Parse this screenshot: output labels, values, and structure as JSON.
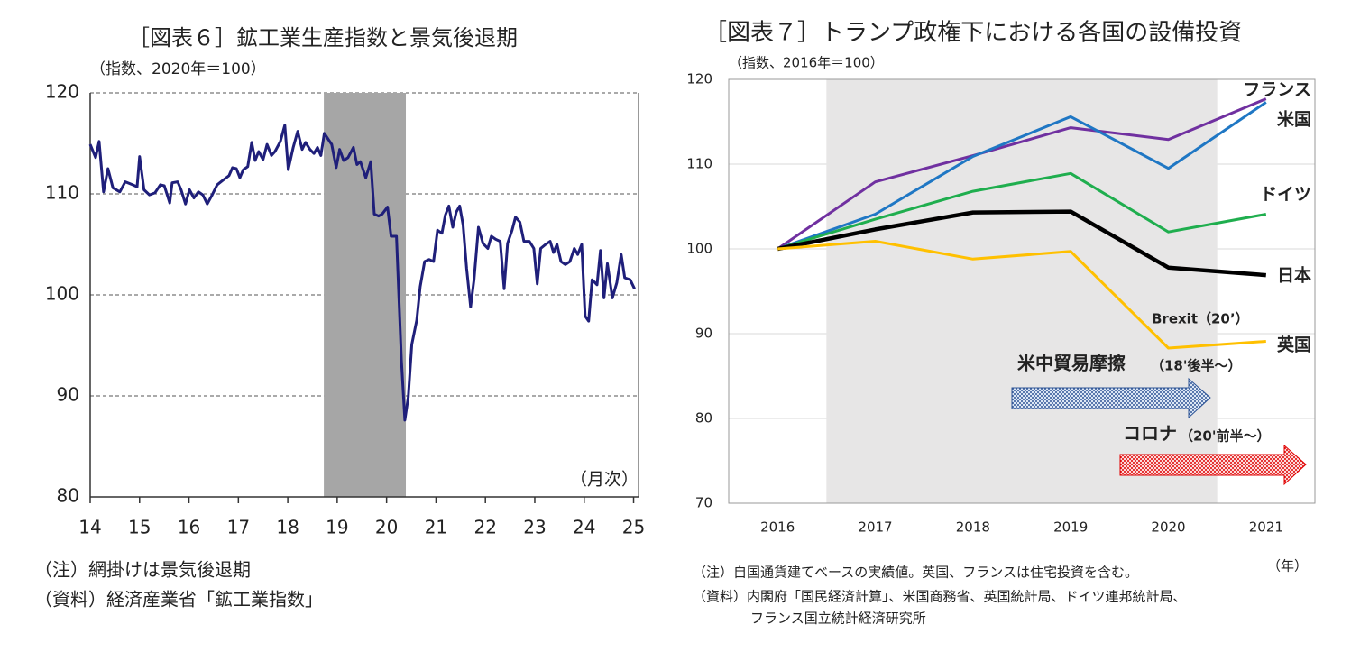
{
  "chart_data": [
    {
      "type": "line",
      "title": "［図表６］鉱工業生産指数と景気後退期",
      "subtitle": "（指数、2020年＝100）",
      "x_label": "（月次）",
      "notes": [
        "（注）網掛けは景気後退期",
        "（資料）経済産業省「鉱工業指数」"
      ],
      "xlim": [
        14,
        25.1
      ],
      "xticks": [
        14,
        15,
        16,
        17,
        18,
        19,
        20,
        21,
        22,
        23,
        24,
        25
      ],
      "ylim": [
        80,
        120
      ],
      "yticks": [
        80,
        90,
        100,
        110,
        120
      ],
      "grid": true,
      "grid_style": "dashed",
      "shade": [
        18.73,
        20.39
      ],
      "shade_color": "#a6a6a6",
      "x": [
        14.0,
        14.11,
        14.18,
        14.27,
        14.36,
        14.46,
        14.6,
        14.71,
        14.86,
        14.95,
        15.0,
        15.09,
        15.2,
        15.31,
        15.42,
        15.5,
        15.61,
        15.66,
        15.77,
        15.84,
        15.93,
        16.01,
        16.1,
        16.19,
        16.28,
        16.37,
        16.46,
        16.57,
        16.7,
        16.81,
        16.88,
        16.96,
        17.03,
        17.1,
        17.19,
        17.27,
        17.34,
        17.41,
        17.5,
        17.58,
        17.67,
        17.74,
        17.85,
        17.94,
        18.01,
        18.11,
        18.2,
        18.29,
        18.36,
        18.45,
        18.53,
        18.6,
        18.67,
        18.74,
        18.82,
        18.89,
        18.98,
        19.05,
        19.13,
        19.22,
        19.33,
        19.4,
        19.47,
        19.58,
        19.68,
        19.75,
        19.84,
        19.91,
        20.02,
        20.09,
        20.2,
        20.3,
        20.37,
        20.44,
        20.51,
        20.61,
        20.68,
        20.77,
        20.86,
        20.95,
        21.03,
        21.12,
        21.19,
        21.26,
        21.34,
        21.41,
        21.48,
        21.55,
        21.62,
        21.7,
        21.77,
        21.86,
        21.95,
        22.05,
        22.12,
        22.21,
        22.3,
        22.38,
        22.45,
        22.54,
        22.61,
        22.7,
        22.78,
        22.89,
        22.98,
        23.05,
        23.12,
        23.22,
        23.31,
        23.38,
        23.45,
        23.53,
        23.62,
        23.71,
        23.8,
        23.87,
        23.95,
        24.02,
        24.09,
        24.16,
        24.26,
        24.33,
        24.4,
        24.47,
        24.57,
        24.66,
        24.75,
        24.82,
        24.93,
        25.02
      ],
      "series": [
        {
          "name": "鉱工業生産指数",
          "color": "#1f1f7a",
          "values": [
            114.9,
            113.6,
            115.2,
            110.2,
            112.5,
            110.6,
            110.2,
            111.2,
            110.9,
            110.7,
            113.7,
            110.4,
            109.9,
            110.1,
            110.9,
            110.8,
            109.1,
            111.1,
            111.2,
            110.4,
            109.0,
            110.4,
            109.6,
            110.2,
            109.9,
            109.0,
            109.8,
            110.9,
            111.4,
            111.8,
            112.6,
            112.5,
            111.6,
            112.4,
            112.7,
            115.1,
            113.3,
            114.2,
            113.4,
            114.9,
            113.8,
            114.2,
            115.2,
            116.8,
            112.4,
            114.6,
            116.2,
            114.4,
            115.1,
            114.4,
            114.0,
            114.6,
            113.8,
            116.0,
            115.4,
            114.9,
            112.6,
            114.4,
            113.3,
            113.6,
            114.6,
            112.9,
            113.2,
            111.6,
            113.2,
            108.0,
            107.8,
            108.0,
            108.7,
            105.8,
            105.8,
            93.5,
            87.6,
            89.9,
            95.1,
            97.5,
            100.8,
            103.3,
            103.5,
            103.3,
            106.4,
            106.1,
            107.9,
            108.8,
            106.7,
            108.2,
            108.8,
            106.9,
            102.6,
            98.8,
            101.5,
            106.7,
            105.1,
            104.6,
            105.8,
            105.5,
            105.3,
            100.6,
            105.1,
            106.4,
            107.7,
            107.2,
            105.3,
            105.3,
            104.6,
            101.1,
            104.6,
            105.0,
            105.3,
            104.2,
            105.0,
            103.3,
            103.0,
            103.3,
            104.6,
            104.0,
            105.0,
            97.9,
            97.4,
            101.5,
            101.0,
            104.4,
            99.7,
            103.1,
            99.7,
            101.2,
            104.0,
            101.7,
            101.5,
            100.6
          ]
        }
      ]
    },
    {
      "type": "line",
      "title": "［図表７］トランプ政権下における各国の設備投資",
      "subtitle": "（指数、2016年＝100）",
      "x_label": "（年）",
      "notes": [
        "（注）自国通貨建てベースの実績値。英国、フランスは住宅投資を含む。",
        "（資料）内閣府「国民経済計算」、米国商務省、英国統計局、ドイツ連邦統計局、",
        "フランス国立統計経済研究所"
      ],
      "annotations": [
        "Brexit（20’）",
        "米中貿易摩擦",
        "（18'後半～）",
        "コロナ",
        "（20'前半～）"
      ],
      "xlim": [
        2015.5,
        2021.5
      ],
      "xticks": [
        2016,
        2017,
        2018,
        2019,
        2020,
        2021
      ],
      "ylim": [
        70,
        120
      ],
      "yticks": [
        70,
        80,
        90,
        100,
        110,
        120
      ],
      "grid": true,
      "grid_style": "solid",
      "shade": [
        2016.5,
        2020.5
      ],
      "shade_color": "#e7e6e6",
      "x": [
        2016,
        2017,
        2018,
        2019,
        2020,
        2021
      ],
      "series": [
        {
          "name": "フランス",
          "color": "#7030a0",
          "values": [
            100,
            107.9,
            111.0,
            114.3,
            112.9,
            117.7
          ]
        },
        {
          "name": "米国",
          "color": "#1f77c4",
          "values": [
            100,
            104.1,
            110.9,
            115.6,
            109.5,
            117.3
          ]
        },
        {
          "name": "ドイツ",
          "color": "#1fae4e",
          "values": [
            100,
            103.5,
            106.8,
            108.9,
            102.0,
            104.1
          ]
        },
        {
          "name": "日本",
          "color": "#000000",
          "values": [
            100,
            102.3,
            104.3,
            104.4,
            97.8,
            96.9
          ]
        },
        {
          "name": "英国",
          "color": "#ffc000",
          "values": [
            100,
            100.9,
            98.8,
            99.7,
            88.3,
            89.1
          ]
        }
      ]
    }
  ]
}
